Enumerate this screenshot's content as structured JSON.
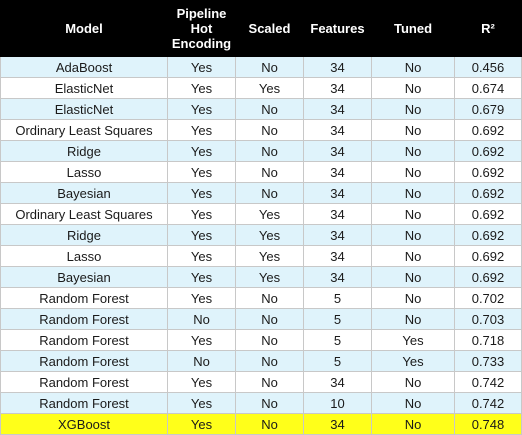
{
  "headers": {
    "model": "Model",
    "pipeline": "Pipeline Hot Encoding",
    "scaled": "Scaled",
    "features": "Features",
    "tuned": "Tuned",
    "r2": "R²"
  },
  "rows": [
    {
      "model": "AdaBoost",
      "pipeline": "Yes",
      "scaled": "No",
      "features": "34",
      "tuned": "No",
      "r2": "0.456"
    },
    {
      "model": "ElasticNet",
      "pipeline": "Yes",
      "scaled": "Yes",
      "features": "34",
      "tuned": "No",
      "r2": "0.674"
    },
    {
      "model": "ElasticNet",
      "pipeline": "Yes",
      "scaled": "No",
      "features": "34",
      "tuned": "No",
      "r2": "0.679"
    },
    {
      "model": "Ordinary Least Squares",
      "pipeline": "Yes",
      "scaled": "No",
      "features": "34",
      "tuned": "No",
      "r2": "0.692"
    },
    {
      "model": "Ridge",
      "pipeline": "Yes",
      "scaled": "No",
      "features": "34",
      "tuned": "No",
      "r2": "0.692"
    },
    {
      "model": "Lasso",
      "pipeline": "Yes",
      "scaled": "No",
      "features": "34",
      "tuned": "No",
      "r2": "0.692"
    },
    {
      "model": "Bayesian",
      "pipeline": "Yes",
      "scaled": "No",
      "features": "34",
      "tuned": "No",
      "r2": "0.692"
    },
    {
      "model": "Ordinary Least Squares",
      "pipeline": "Yes",
      "scaled": "Yes",
      "features": "34",
      "tuned": "No",
      "r2": "0.692"
    },
    {
      "model": "Ridge",
      "pipeline": "Yes",
      "scaled": "Yes",
      "features": "34",
      "tuned": "No",
      "r2": "0.692"
    },
    {
      "model": "Lasso",
      "pipeline": "Yes",
      "scaled": "Yes",
      "features": "34",
      "tuned": "No",
      "r2": "0.692"
    },
    {
      "model": "Bayesian",
      "pipeline": "Yes",
      "scaled": "Yes",
      "features": "34",
      "tuned": "No",
      "r2": "0.692"
    },
    {
      "model": "Random Forest",
      "pipeline": "Yes",
      "scaled": "No",
      "features": "5",
      "tuned": "No",
      "r2": "0.702"
    },
    {
      "model": "Random Forest",
      "pipeline": "No",
      "scaled": "No",
      "features": "5",
      "tuned": "No",
      "r2": "0.703"
    },
    {
      "model": "Random Forest",
      "pipeline": "Yes",
      "scaled": "No",
      "features": "5",
      "tuned": "Yes",
      "r2": "0.718"
    },
    {
      "model": "Random Forest",
      "pipeline": "No",
      "scaled": "No",
      "features": "5",
      "tuned": "Yes",
      "r2": "0.733"
    },
    {
      "model": "Random Forest",
      "pipeline": "Yes",
      "scaled": "No",
      "features": "34",
      "tuned": "No",
      "r2": "0.742"
    },
    {
      "model": "Random Forest",
      "pipeline": "Yes",
      "scaled": "No",
      "features": "10",
      "tuned": "No",
      "r2": "0.742"
    },
    {
      "model": "XGBoost",
      "pipeline": "Yes",
      "scaled": "No",
      "features": "34",
      "tuned": "No",
      "r2": "0.748",
      "highlighted": true
    }
  ],
  "colors": {
    "header_bg": "#000000",
    "header_text": "#ffffff",
    "row_alt_bg": "#dff3fb",
    "row_plain_bg": "#ffffff",
    "highlight_bg": "#ffff1a"
  }
}
